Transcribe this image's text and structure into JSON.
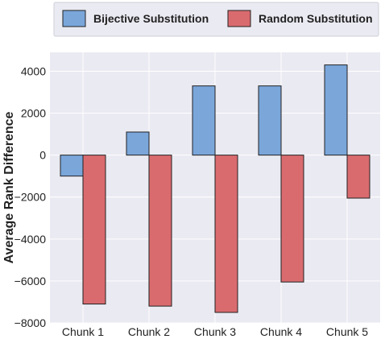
{
  "chart_data": {
    "type": "bar",
    "categories": [
      "Chunk 1",
      "Chunk 2",
      "Chunk 3",
      "Chunk 4",
      "Chunk 5"
    ],
    "series": [
      {
        "name": "Bijective Substitution",
        "values": [
          -1000,
          1100,
          3300,
          3300,
          4300
        ],
        "color": "#7aa6da"
      },
      {
        "name": "Random Substitution",
        "values": [
          -7100,
          -7200,
          -7500,
          -6050,
          -2050
        ],
        "color": "#d96b6f"
      }
    ],
    "title": "",
    "xlabel": "",
    "ylabel": "Average Rank Difference",
    "ylim": [
      -8000,
      4900
    ],
    "yticks": [
      -8000,
      -6000,
      -4000,
      -2000,
      0,
      2000,
      4000
    ],
    "ytick_labels": [
      "−8000",
      "−6000",
      "−4000",
      "−2000",
      "0",
      "2000",
      "4000"
    ],
    "grid": true,
    "legend_position": "top-center",
    "background_color": "#eaeaf2"
  }
}
